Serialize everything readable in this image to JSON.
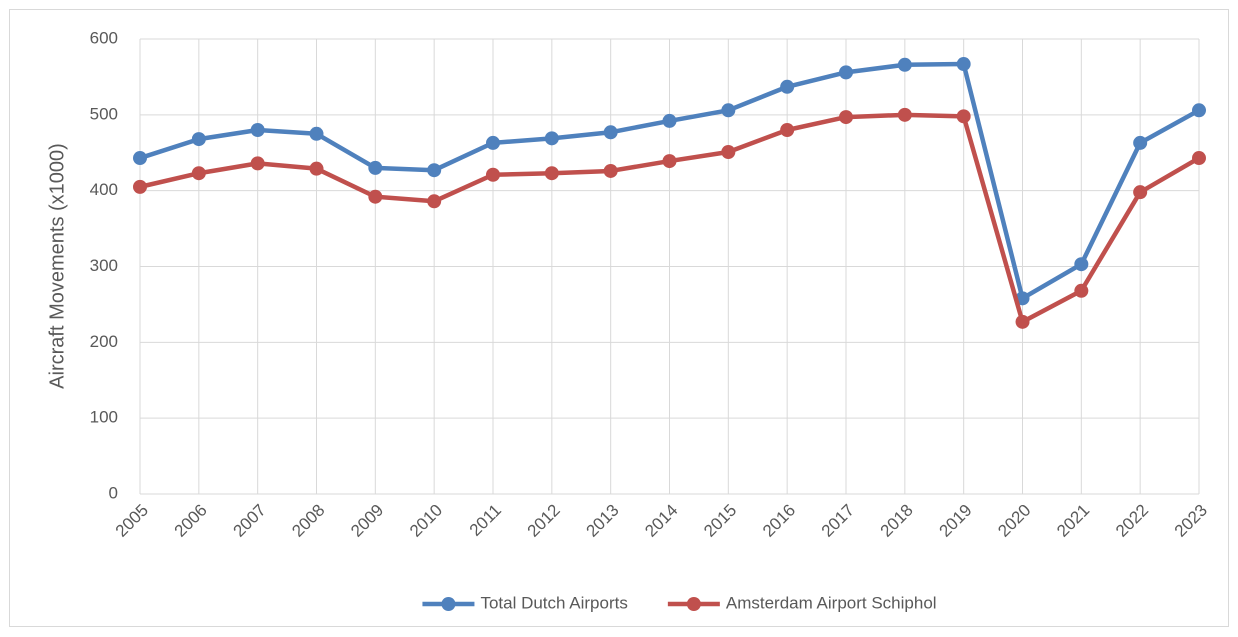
{
  "chart_data": {
    "type": "line",
    "y_label": "Aircraft Movements (x1000)",
    "categories": [
      "2005",
      "2006",
      "2007",
      "2008",
      "2009",
      "2010",
      "2011",
      "2012",
      "2013",
      "2014",
      "2015",
      "2016",
      "2017",
      "2018",
      "2019",
      "2020",
      "2021",
      "2022",
      "2023"
    ],
    "series": [
      {
        "name": "Total Dutch Airports",
        "color": "#4f81bd",
        "values": [
          443,
          468,
          480,
          475,
          430,
          427,
          463,
          469,
          477,
          492,
          506,
          537,
          556,
          566,
          567,
          258,
          303,
          463,
          506
        ]
      },
      {
        "name": "Amsterdam Airport Schiphol",
        "color": "#c0504d",
        "values": [
          405,
          423,
          436,
          429,
          392,
          386,
          421,
          423,
          426,
          439,
          451,
          480,
          497,
          500,
          498,
          227,
          268,
          398,
          443
        ]
      }
    ],
    "ylim": [
      0,
      600
    ],
    "yticks": [
      0,
      100,
      200,
      300,
      400,
      500,
      600
    ],
    "grid": true,
    "legend": "bottom"
  }
}
